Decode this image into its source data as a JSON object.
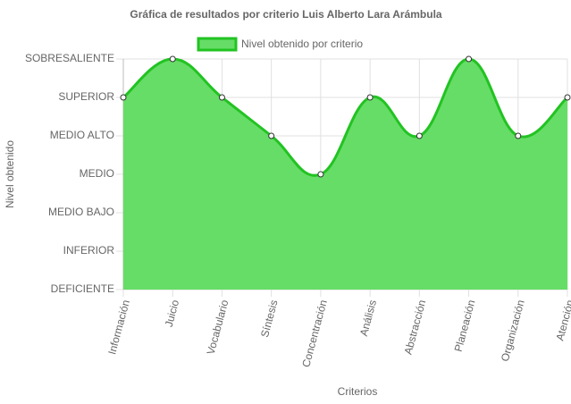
{
  "chart_data": {
    "type": "line",
    "title": "Gráfica de resultados por criterio Luis Alberto Lara Arámbula",
    "x_label": "Criterios",
    "y_label": "Nivel obtenido",
    "categories": [
      "Información",
      "Juicio",
      "Vocabulario",
      "Síntesis",
      "Concentración",
      "Análisis",
      "Abstracción",
      "Planeación",
      "Organización",
      "Atención"
    ],
    "series": [
      {
        "name": "Nivel obtenido por criterio",
        "color": "#22c322",
        "fill": "#66dd66",
        "values": [
          5,
          6,
          5,
          4,
          3,
          5,
          4,
          6,
          4,
          5
        ]
      }
    ],
    "ylim": [
      0,
      6
    ],
    "yticks": [
      {
        "value": 0,
        "label": "DEFICIENTE"
      },
      {
        "value": 1,
        "label": "INFERIOR"
      },
      {
        "value": 2,
        "label": "MEDIO BAJO"
      },
      {
        "value": 3,
        "label": "MEDIO"
      },
      {
        "value": 4,
        "label": "MEDIO ALTO"
      },
      {
        "value": 5,
        "label": "SUPERIOR"
      },
      {
        "value": 6,
        "label": "SOBRESALIENTE"
      }
    ],
    "grid": true
  }
}
